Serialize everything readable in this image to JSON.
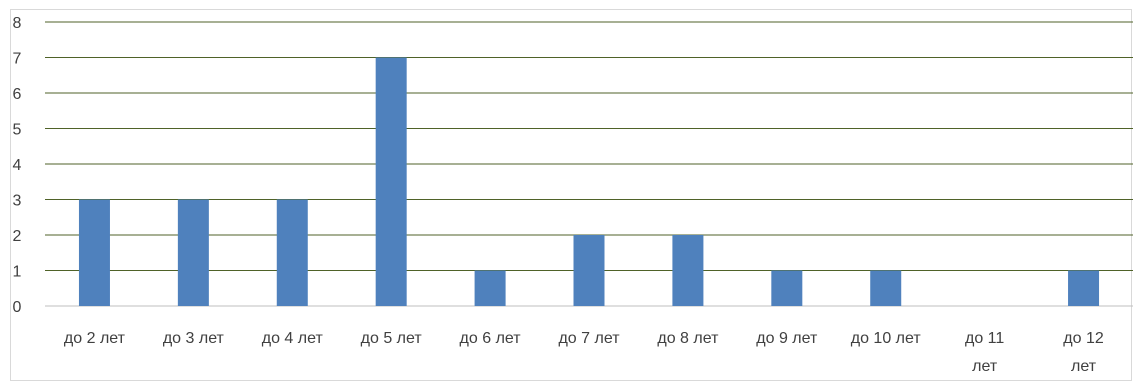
{
  "chart_data": {
    "type": "bar",
    "categories": [
      [
        "до 2 лет"
      ],
      [
        "до 3 лет"
      ],
      [
        "до 4 лет"
      ],
      [
        "до 5 лет"
      ],
      [
        "до 6 лет"
      ],
      [
        "до 7 лет"
      ],
      [
        "до 8 лет"
      ],
      [
        "до 9 лет"
      ],
      [
        "до 10 лет"
      ],
      [
        "до 11",
        "лет"
      ],
      [
        "до 12",
        "лет"
      ]
    ],
    "values": [
      3,
      3,
      3,
      7,
      1,
      2,
      2,
      1,
      1,
      0,
      1
    ],
    "ylim": [
      0,
      8
    ],
    "yticks": [
      0,
      1,
      2,
      3,
      4,
      5,
      6,
      7,
      8
    ],
    "grid": true,
    "title": "",
    "xlabel": "",
    "ylabel": ""
  },
  "colors": {
    "bar": "#4f81bd",
    "grid": "#4f6228",
    "axis": "#bfbfbf",
    "text": "#404040"
  }
}
